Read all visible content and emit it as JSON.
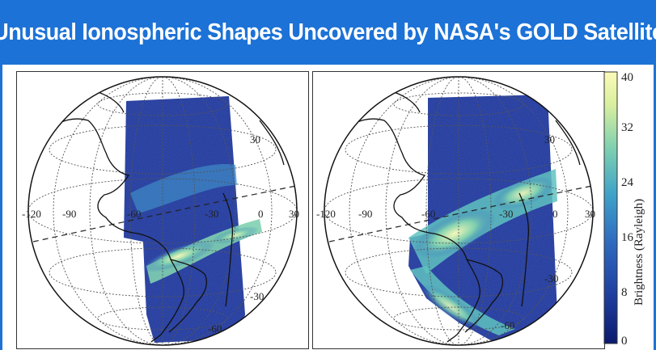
{
  "banner": {
    "title": "Unusual Ionospheric Shapes Uncovered by NASA's GOLD Satellite",
    "background": "#1c72d6",
    "text_color": "#ffffff"
  },
  "panels": [
    {
      "name": "left-globe",
      "lon_labels": [
        "-120",
        "-90",
        "-60",
        "-30",
        "0",
        "30"
      ],
      "lat_labels": [
        "30",
        "-30",
        "-60"
      ],
      "glow_shape": "single-band"
    },
    {
      "name": "right-globe",
      "lon_labels": [
        "-120",
        "-90",
        "-60",
        "-30",
        "0",
        "30"
      ],
      "lat_labels": [
        "30",
        "-30",
        "-60"
      ],
      "glow_shape": "broad-crest"
    }
  ],
  "colorbar": {
    "title": "Brightness (Rayleigh)",
    "ticks": [
      "40",
      "32",
      "24",
      "16",
      "8",
      "0"
    ],
    "range": [
      0,
      40
    ],
    "colormap": [
      "#0b1a6e",
      "#1f3fa0",
      "#2f6cc0",
      "#3fa3c8",
      "#7fd0b0",
      "#d9ef9f",
      "#fbfbb8"
    ]
  },
  "colors": {
    "swath_base": "#23389a",
    "glow_mid": "#44b9c6",
    "glow_bright": "#f4f8b8"
  }
}
